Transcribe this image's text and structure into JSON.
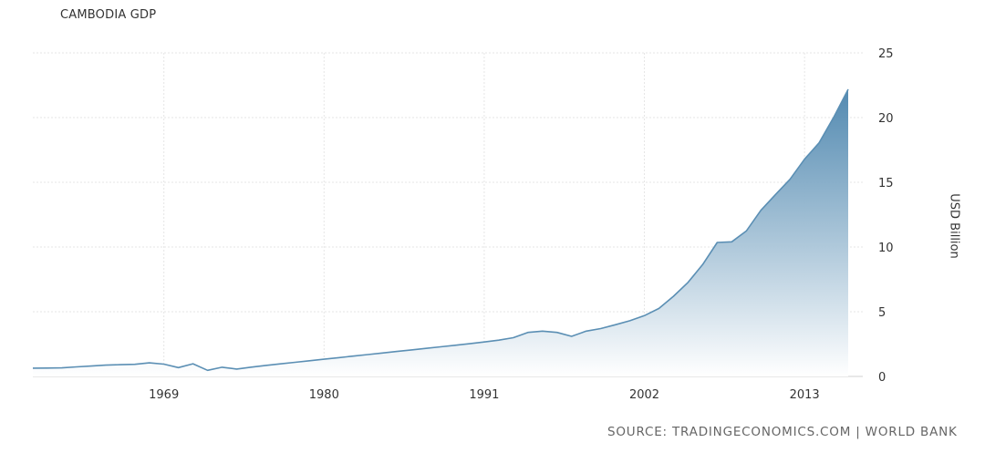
{
  "chart_data": {
    "type": "area",
    "title": "CAMBODIA GDP",
    "ylabel": "USD Billion",
    "xlabel": "",
    "source": "SOURCE: TRADINGECONOMICS.COM | WORLD BANK",
    "xlim": [
      1960,
      2017
    ],
    "ylim": [
      0,
      25
    ],
    "x_ticks": [
      1969,
      1980,
      1991,
      2002,
      2013
    ],
    "y_ticks": [
      0,
      5,
      10,
      15,
      20,
      25
    ],
    "grid": true,
    "line_color": "#5b8fb4",
    "fill_top_color": "#4a84ad",
    "fill_bottom_color": "#ffffff",
    "series": [
      {
        "x": [
          1960,
          1961,
          1962,
          1963,
          1964,
          1965,
          1966,
          1967,
          1968,
          1969,
          1970,
          1971,
          1972,
          1973,
          1974,
          1975,
          1976,
          1977,
          1978,
          1979,
          1980,
          1981,
          1982,
          1983,
          1984,
          1985,
          1986,
          1987,
          1988,
          1989,
          1990,
          1991,
          1992,
          1993,
          1994,
          1995,
          1996,
          1997,
          1998,
          1999,
          2000,
          2001,
          2002,
          2003,
          2004,
          2005,
          2006,
          2007,
          2008,
          2009,
          2010,
          2011,
          2012,
          2013,
          2014,
          2015,
          2016
        ],
        "values": [
          0.64,
          0.65,
          0.66,
          0.74,
          0.8,
          0.87,
          0.91,
          0.94,
          1.05,
          0.95,
          0.68,
          0.98,
          0.47,
          0.71,
          0.57,
          0.72,
          0.85,
          0.97,
          1.09,
          1.21,
          1.33,
          1.45,
          1.57,
          1.69,
          1.81,
          1.93,
          2.05,
          2.17,
          2.29,
          2.41,
          2.53,
          2.66,
          2.8,
          2.99,
          3.4,
          3.5,
          3.4,
          3.1,
          3.5,
          3.7,
          3.99,
          4.3,
          4.7,
          5.25,
          6.2,
          7.27,
          8.64,
          10.35,
          10.4,
          11.24,
          12.83,
          14.04,
          15.23,
          16.78,
          18.05,
          20.02,
          22.18
        ]
      }
    ]
  }
}
